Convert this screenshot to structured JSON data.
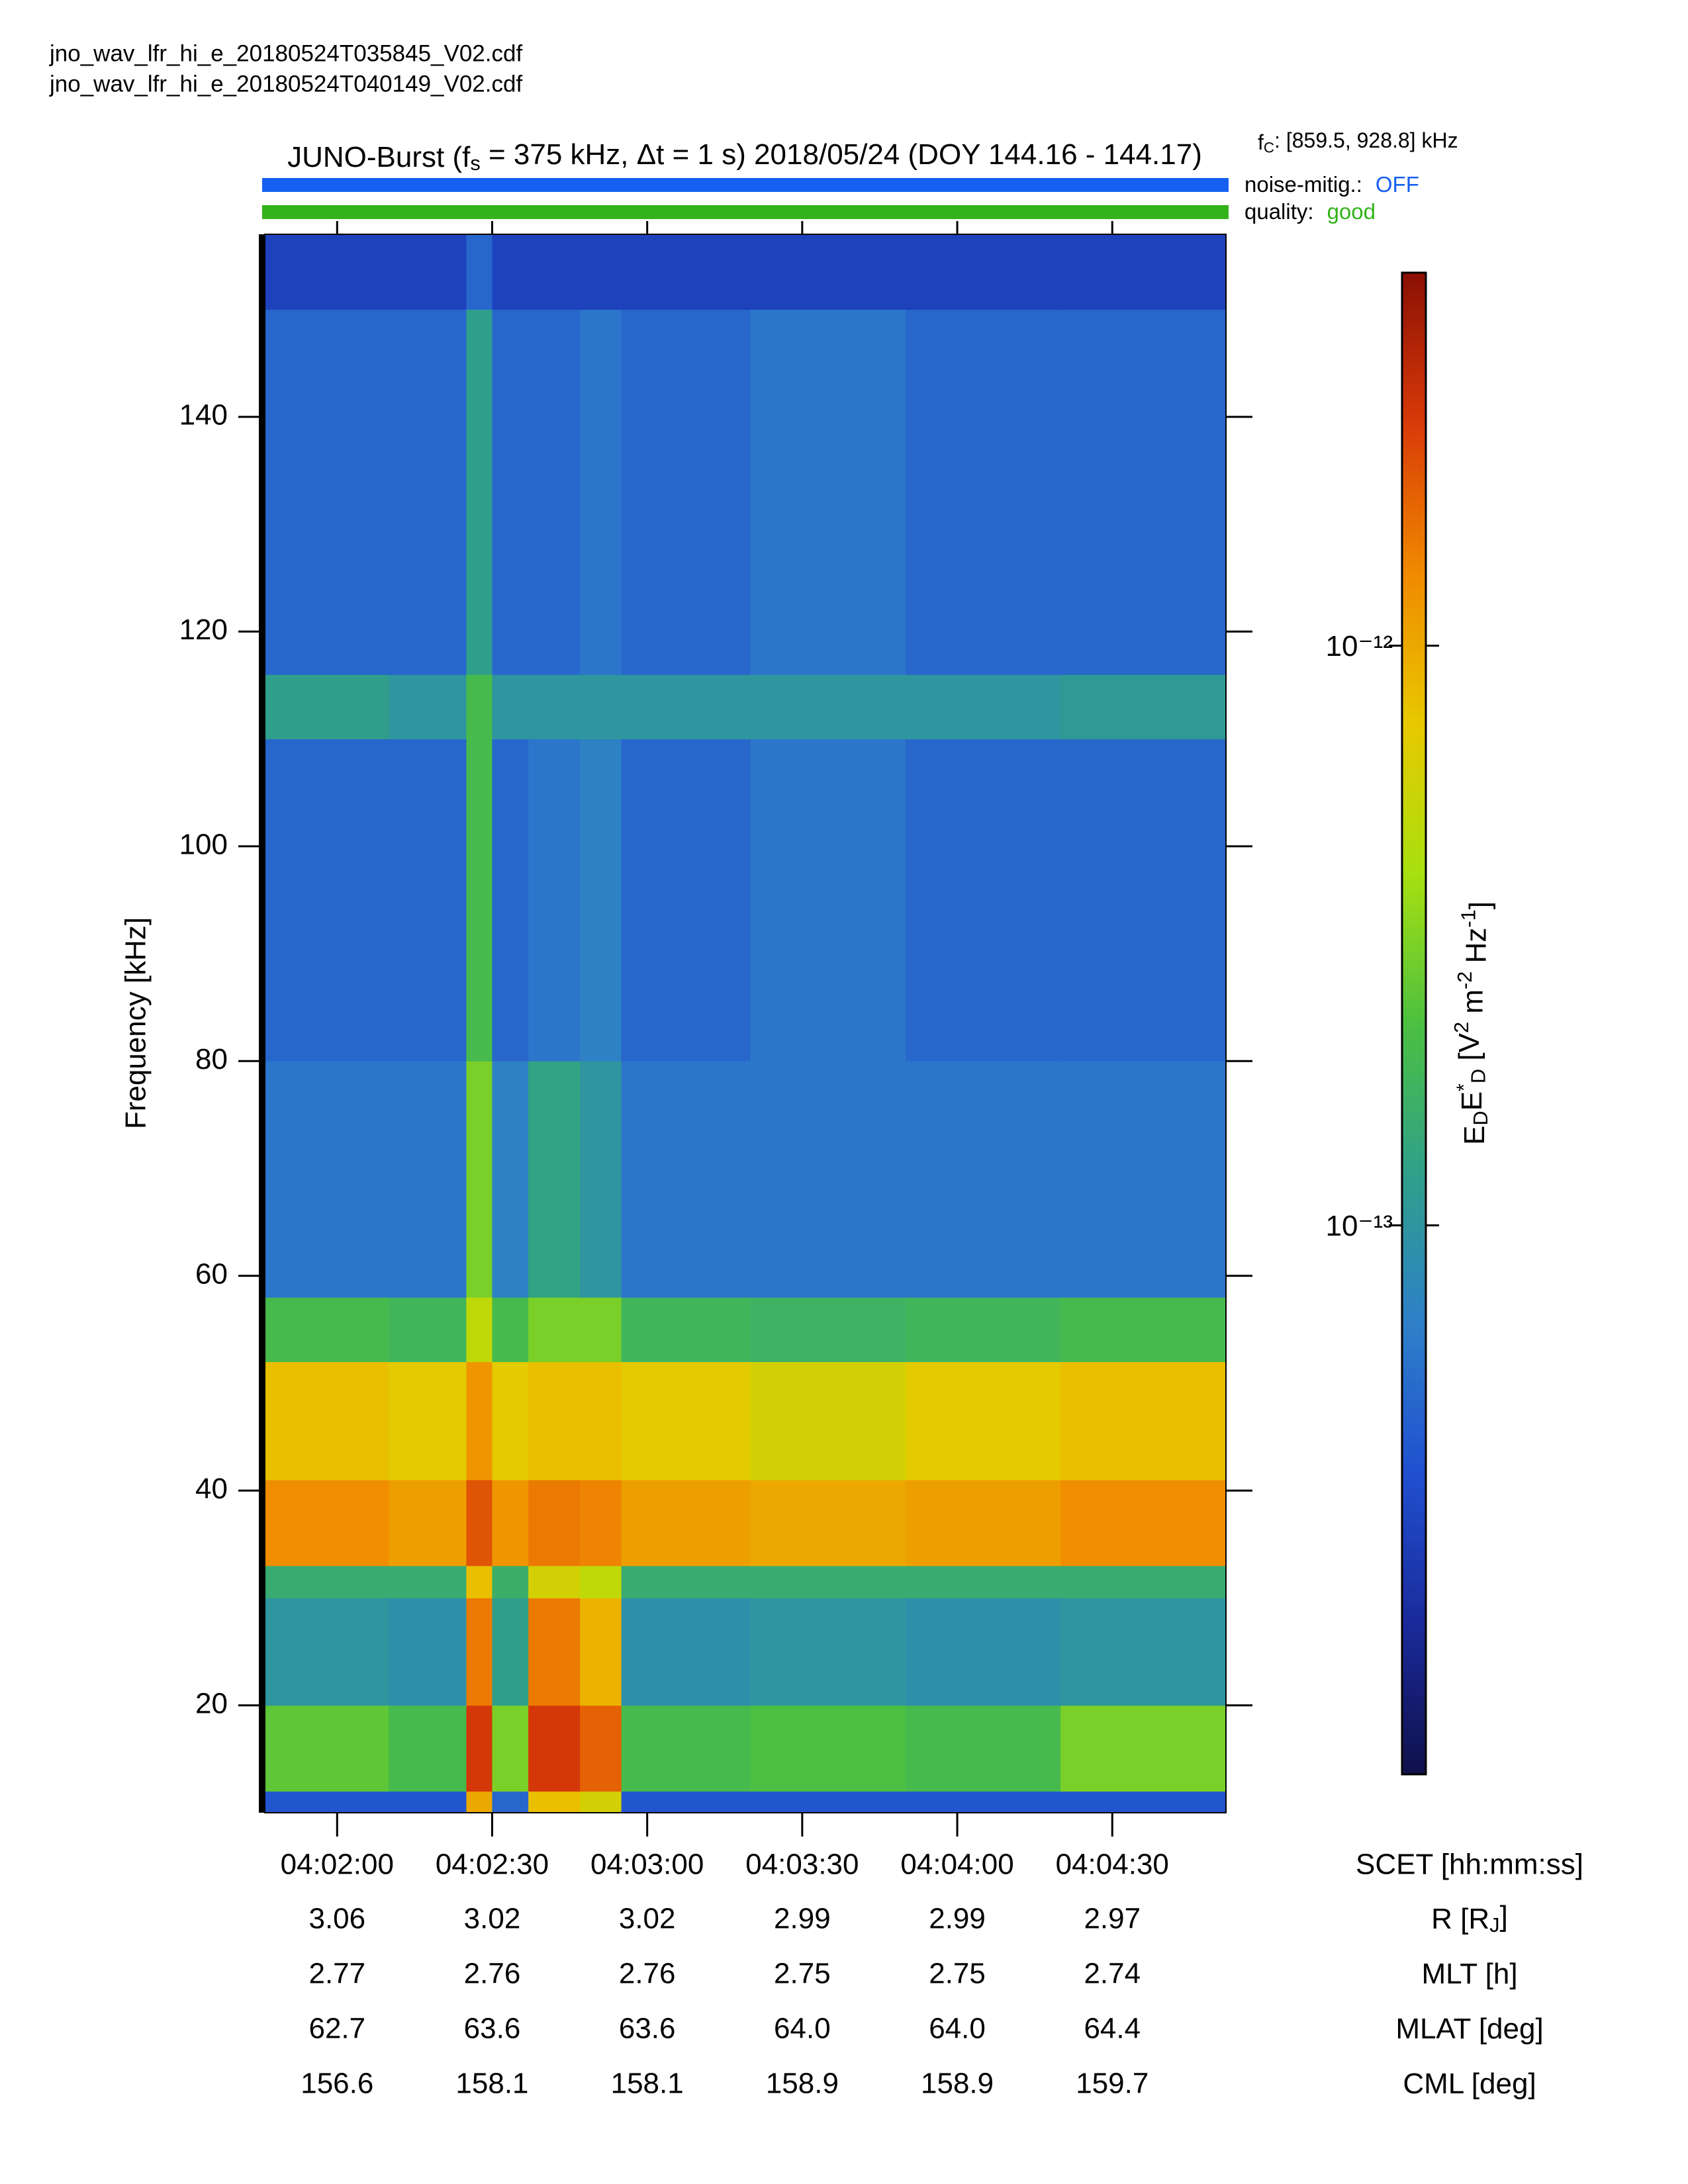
{
  "header": {
    "files": [
      "jno_wav_lfr_hi_e_20180524T035845_V02.cdf",
      "jno_wav_lfr_hi_e_20180524T040149_V02.cdf"
    ]
  },
  "chart_data": {
    "type": "spectrogram",
    "title": [
      {
        "text": "JUNO-Burst (f"
      },
      {
        "text": "s",
        "shift": "sub"
      },
      {
        "text": " = 375 kHz, Δt = 1 s)  2018/05/24 (DOY 144.16 - 144.17)"
      }
    ],
    "fc": [
      {
        "text": "f"
      },
      {
        "text": "C",
        "shift": "sub"
      },
      {
        "text": ": [859.5, 928.8] kHz"
      }
    ],
    "status": [
      {
        "label": "noise-mitig.:",
        "value": "OFF",
        "color": "#1560f0"
      },
      {
        "label": "quality:",
        "value": "good",
        "color": "#33b31a"
      }
    ],
    "ylabel": "Frequency [kHz]",
    "xlabel": "SCET [hh:mm:ss]",
    "xlim": [
      "04:01:46",
      "04:04:52"
    ],
    "xticks": [
      "04:02:00",
      "04:02:30",
      "04:03:00",
      "04:03:30",
      "04:04:00",
      "04:04:30"
    ],
    "ylim": [
      10,
      157
    ],
    "yticks": [
      20,
      40,
      60,
      80,
      100,
      120,
      140
    ],
    "time_bins": [
      "04:01:46",
      "04:02:10",
      "04:02:25",
      "04:02:30",
      "04:02:37",
      "04:02:47",
      "04:02:55",
      "04:03:20",
      "04:03:50",
      "04:04:20",
      "04:04:52"
    ],
    "freq_bins": [
      10,
      12,
      20,
      30,
      33,
      41,
      52,
      58,
      80,
      110,
      116,
      150,
      157
    ],
    "z": [
      [
        4e-14,
        4e-14,
        1e-12,
        5e-14,
        8e-13,
        6e-13,
        4e-14,
        4e-14,
        4e-14,
        4e-14
      ],
      [
        2.5e-13,
        2e-13,
        2.5e-12,
        3e-13,
        2.5e-12,
        1.8e-12,
        2e-13,
        2.2e-13,
        2e-13,
        3e-13
      ],
      [
        1e-13,
        9e-14,
        1.5e-12,
        1.2e-13,
        1.5e-12,
        9e-13,
        9e-14,
        1e-13,
        9e-14,
        1e-13
      ],
      [
        1.5e-13,
        1.5e-13,
        8e-13,
        1.6e-13,
        6e-13,
        5e-13,
        1.5e-13,
        1.5e-13,
        1.5e-13,
        1.5e-13
      ],
      [
        1.3e-12,
        1.1e-12,
        2e-12,
        1.2e-12,
        1.5e-12,
        1.4e-12,
        1.1e-12,
        1e-12,
        1.1e-12,
        1.3e-12
      ],
      [
        8e-13,
        7e-13,
        1.2e-12,
        7e-13,
        8e-13,
        8e-13,
        7e-13,
        6e-13,
        7e-13,
        8e-13
      ],
      [
        2e-13,
        1.8e-13,
        5e-13,
        2e-13,
        3e-13,
        3e-13,
        1.8e-13,
        1.7e-13,
        1.8e-13,
        2e-13
      ],
      [
        6e-14,
        6e-14,
        3e-13,
        7e-14,
        1.3e-13,
        1e-13,
        6e-14,
        6e-14,
        6e-14,
        6e-14
      ],
      [
        5e-14,
        5e-14,
        2e-13,
        5e-14,
        6e-14,
        7e-14,
        5e-14,
        6e-14,
        5e-14,
        5e-14
      ],
      [
        1.2e-13,
        1e-13,
        2e-13,
        1e-13,
        1e-13,
        1e-13,
        1e-13,
        1e-13,
        1e-13,
        1.1e-13
      ],
      [
        5e-14,
        5e-14,
        1.2e-13,
        5e-14,
        5e-14,
        6e-14,
        5e-14,
        6e-14,
        5e-14,
        5e-14
      ],
      [
        3e-14,
        3e-14,
        5e-14,
        3e-14,
        3e-14,
        3e-14,
        3e-14,
        3e-14,
        3e-14,
        3e-14
      ]
    ],
    "zlim": [
      1.13e-14,
      4.4e-12
    ],
    "zscale": "log",
    "zticks": [
      {
        "value": 1e-13,
        "label": "10⁻¹³"
      },
      {
        "value": 1e-12,
        "label": "10⁻¹²"
      }
    ],
    "zlabel": [
      {
        "text": "E"
      },
      {
        "text": "D",
        "shift": "sub"
      },
      {
        "text": "E"
      },
      {
        "text": "*",
        "shift": "super"
      },
      {
        "text": "D",
        "shift": "sub"
      },
      {
        "text": "  [V"
      },
      {
        "text": "2",
        "shift": "super"
      },
      {
        "text": " m"
      },
      {
        "text": "-2",
        "shift": "super"
      },
      {
        "text": " Hz"
      },
      {
        "text": "-1",
        "shift": "super"
      },
      {
        "text": "]"
      }
    ],
    "colormap": [
      "#10104a",
      "#1a2a9a",
      "#2050d0",
      "#2e7fc8",
      "#2fa08a",
      "#4cc040",
      "#a8e010",
      "#e8c800",
      "#f08a00",
      "#d83a08",
      "#8a1004"
    ],
    "ephemeris": [
      {
        "label": [
          {
            "text": "R [R"
          },
          {
            "text": "J",
            "shift": "sub"
          },
          {
            "text": "]"
          }
        ],
        "values": [
          "3.06",
          "3.02",
          "3.02",
          "2.99",
          "2.99",
          "2.97"
        ]
      },
      {
        "label": [
          {
            "text": "MLT [h]"
          }
        ],
        "values": [
          "2.77",
          "2.76",
          "2.76",
          "2.75",
          "2.75",
          "2.74"
        ]
      },
      {
        "label": [
          {
            "text": "MLAT [deg]"
          }
        ],
        "values": [
          "62.7",
          "63.6",
          "63.6",
          "64.0",
          "64.0",
          "64.4"
        ]
      },
      {
        "label": [
          {
            "text": "CML [deg]"
          }
        ],
        "values": [
          "156.6",
          "158.1",
          "158.1",
          "158.9",
          "158.9",
          "159.7"
        ]
      }
    ]
  }
}
